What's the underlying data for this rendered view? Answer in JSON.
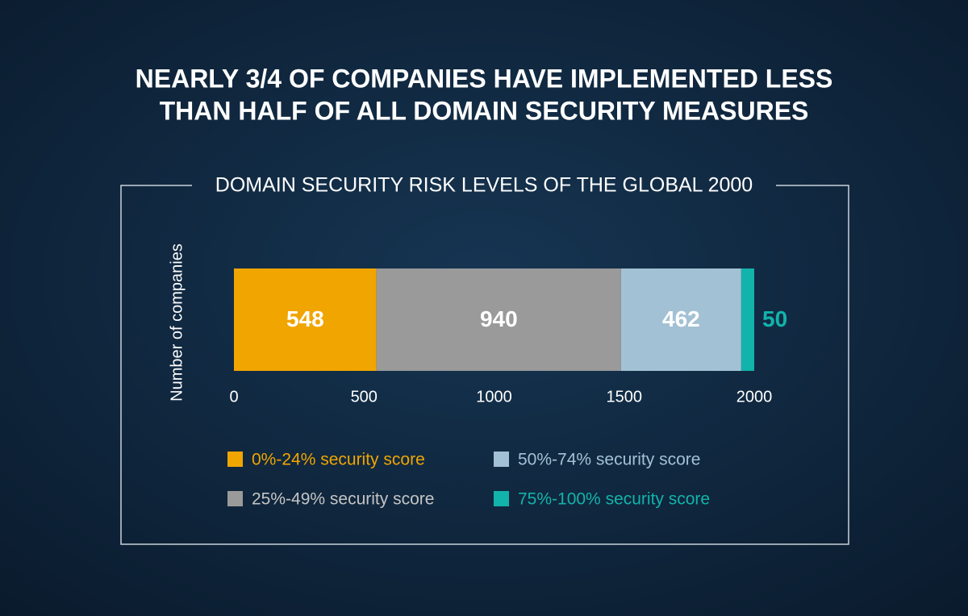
{
  "chart_data": {
    "type": "stacked-bar-horizontal",
    "title": [
      "NEARLY 3/4 OF COMPANIES HAVE IMPLEMENTED LESS",
      "THAN HALF OF ALL DOMAIN SECURITY MEASURES"
    ],
    "subtitle": "DOMAIN SECURITY RISK LEVELS OF THE GLOBAL 2000",
    "y_label": "Number of companies",
    "series": [
      {
        "name": "0%-24% security score",
        "color": "#f0a500",
        "values": [
          548
        ]
      },
      {
        "name": "25%-49% security score",
        "color": "#9a9a9a",
        "values": [
          940
        ]
      },
      {
        "name": "50%-74% security score",
        "color": "#a3c1d4",
        "values": [
          462
        ]
      },
      {
        "name": "75%-100% security score",
        "color": "#12b3aa",
        "values": [
          50
        ]
      }
    ],
    "xlim": [
      0,
      2000
    ],
    "xticks": [
      0,
      500,
      1000,
      1500,
      2000
    ]
  }
}
